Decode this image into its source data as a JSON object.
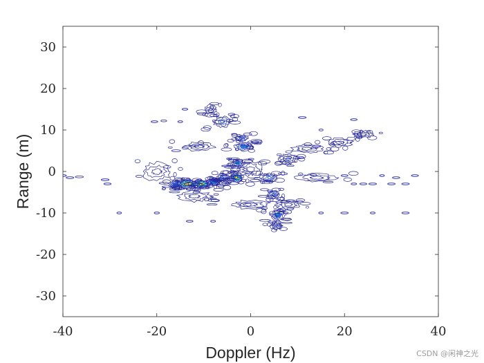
{
  "chart_data": {
    "type": "contour",
    "xlabel": "Doppler (Hz)",
    "ylabel": "Range (m)",
    "xlim": [
      -40,
      40
    ],
    "ylim": [
      -35,
      35
    ],
    "xticks": [
      -40,
      -20,
      0,
      20,
      40
    ],
    "yticks": [
      -30,
      -20,
      -10,
      0,
      10,
      20,
      30
    ],
    "grid": false,
    "colormap": [
      "#2b2c9c",
      "#1f4fd6",
      "#1c8cd8",
      "#22c3b4",
      "#8fd24a",
      "#f2e42a"
    ],
    "line_color": "#27289a",
    "blobs": [
      {
        "x": -13.5,
        "y": -3.0,
        "sx": 2.4,
        "sy": 1.0,
        "a": 1.0
      },
      {
        "x": -10.5,
        "y": -3.0,
        "sx": 2.0,
        "sy": 0.9,
        "a": 0.85
      },
      {
        "x": -16.0,
        "y": -3.2,
        "sx": 1.3,
        "sy": 0.8,
        "a": 0.45
      },
      {
        "x": -8.0,
        "y": -2.5,
        "sx": 1.5,
        "sy": 1.0,
        "a": 0.4
      },
      {
        "x": -6.0,
        "y": -1.5,
        "sx": 1.2,
        "sy": 1.0,
        "a": 0.3
      },
      {
        "x": -3.0,
        "y": -1.5,
        "sx": 1.4,
        "sy": 1.1,
        "a": 0.9
      },
      {
        "x": -2.8,
        "y": 2.0,
        "sx": 1.2,
        "sy": 0.9,
        "a": 0.5
      },
      {
        "x": -1.5,
        "y": 6.0,
        "sx": 1.8,
        "sy": 1.0,
        "a": 0.45
      },
      {
        "x": -2.0,
        "y": 8.0,
        "sx": 1.4,
        "sy": 0.8,
        "a": 0.3
      },
      {
        "x": -6.0,
        "y": 12.0,
        "sx": 1.8,
        "sy": 1.3,
        "a": 0.35
      },
      {
        "x": -8.5,
        "y": 15.0,
        "sx": 1.2,
        "sy": 1.0,
        "a": 0.2
      },
      {
        "x": 4.0,
        "y": -1.5,
        "sx": 1.5,
        "sy": 1.0,
        "a": 0.35
      },
      {
        "x": 4.8,
        "y": -5.5,
        "sx": 1.2,
        "sy": 0.9,
        "a": 0.3
      },
      {
        "x": 5.8,
        "y": -10.5,
        "sx": 1.5,
        "sy": 1.2,
        "a": 0.4
      },
      {
        "x": 5.5,
        "y": -13.0,
        "sx": 1.2,
        "sy": 1.0,
        "a": 0.25
      },
      {
        "x": 8.0,
        "y": 3.0,
        "sx": 2.2,
        "sy": 1.2,
        "a": 0.25
      },
      {
        "x": 0.0,
        "y": 0.5,
        "sx": 2.5,
        "sy": 2.0,
        "a": 0.18
      },
      {
        "x": 24.0,
        "y": 9.0,
        "sx": 2.0,
        "sy": 0.8,
        "a": 0.15
      },
      {
        "x": 19.0,
        "y": 7.0,
        "sx": 2.5,
        "sy": 1.0,
        "a": 0.1
      },
      {
        "x": 12.0,
        "y": 5.5,
        "sx": 3.0,
        "sy": 1.0,
        "a": 0.1
      },
      {
        "x": -20.0,
        "y": 0.0,
        "sx": 3.0,
        "sy": 2.0,
        "a": 0.12
      },
      {
        "x": -11.0,
        "y": 6.0,
        "sx": 3.0,
        "sy": 1.0,
        "a": 0.1
      },
      {
        "x": -12.0,
        "y": -6.0,
        "sx": 3.5,
        "sy": 1.2,
        "a": 0.12
      },
      {
        "x": 0.0,
        "y": -8.0,
        "sx": 4.0,
        "sy": 1.0,
        "a": 0.1
      },
      {
        "x": 14.0,
        "y": -1.5,
        "sx": 4.0,
        "sy": 1.0,
        "a": 0.1
      },
      {
        "x": 8.0,
        "y": -8.0,
        "sx": 2.5,
        "sy": 1.0,
        "a": 0.12
      }
    ],
    "sparse_marks": [
      {
        "x": -40,
        "y": -1.0
      },
      {
        "x": -38.5,
        "y": -1.5
      },
      {
        "x": -36.5,
        "y": -1.3
      },
      {
        "x": -31,
        "y": -2.0
      },
      {
        "x": -30.5,
        "y": -3.0
      },
      {
        "x": -28,
        "y": -10.0
      },
      {
        "x": -20.5,
        "y": 12.0
      },
      {
        "x": -18.5,
        "y": 12.2
      },
      {
        "x": -15,
        "y": 12.0
      },
      {
        "x": -14,
        "y": 15.0
      },
      {
        "x": -20,
        "y": -10.0
      },
      {
        "x": -13,
        "y": -12.0
      },
      {
        "x": -8,
        "y": -12.0
      },
      {
        "x": 11,
        "y": 13.0
      },
      {
        "x": 15,
        "y": 10.0
      },
      {
        "x": 20,
        "y": -1.0
      },
      {
        "x": 22,
        "y": -3.0
      },
      {
        "x": 24,
        "y": -3.0
      },
      {
        "x": 26,
        "y": -3.0
      },
      {
        "x": 30,
        "y": -3.0
      },
      {
        "x": 33,
        "y": -3.0
      },
      {
        "x": 35,
        "y": -1.0
      },
      {
        "x": 31,
        "y": -1.5
      },
      {
        "x": 15,
        "y": -10.0
      },
      {
        "x": 20,
        "y": -10.0
      },
      {
        "x": 26,
        "y": -10.0
      },
      {
        "x": 33,
        "y": -10.0
      },
      {
        "x": 22,
        "y": 12.5
      },
      {
        "x": 28,
        "y": -1.0
      }
    ]
  },
  "watermark": "CSDN @闲神之光"
}
